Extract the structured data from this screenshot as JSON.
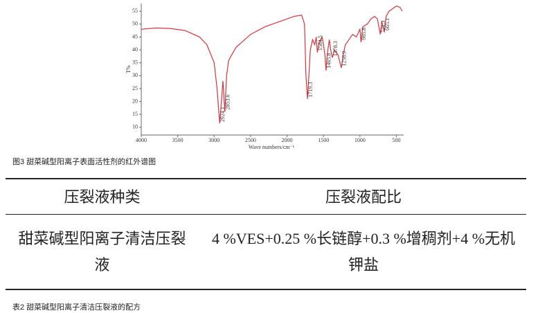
{
  "chart_data": {
    "type": "line",
    "x_label": "Wave numbers/cm⁻¹",
    "y_label": "T%",
    "x": [
      4000,
      3800,
      3600,
      3400,
      3200,
      3100,
      3000,
      2960,
      2924,
      2900,
      2880,
      2853,
      2830,
      2800,
      2700,
      2500,
      2300,
      2100,
      1900,
      1800,
      1760,
      1740,
      1719,
      1700,
      1680,
      1650,
      1620,
      1600,
      1584,
      1560,
      1520,
      1500,
      1480,
      1465,
      1450,
      1420,
      1400,
      1378,
      1350,
      1300,
      1256,
      1230,
      1200,
      1150,
      1100,
      1050,
      1000,
      985,
      960,
      900,
      850,
      800,
      760,
      721,
      700,
      665,
      640,
      600,
      550,
      500,
      450,
      420
    ],
    "values": [
      48,
      48.5,
      48.3,
      47.5,
      45,
      42,
      35,
      25,
      11.5,
      20,
      28,
      16,
      30,
      36,
      41,
      46,
      49,
      51,
      53,
      53.5,
      50,
      30,
      21,
      30,
      40,
      44,
      42,
      45,
      39,
      43,
      45,
      42,
      38,
      32,
      38,
      44,
      40,
      37,
      40,
      38,
      33,
      38,
      42,
      44,
      46,
      45,
      48,
      43,
      49,
      50,
      52,
      53,
      52,
      46,
      51,
      47,
      53,
      55,
      56,
      57,
      56.5,
      55
    ],
    "color": "#d8333d",
    "peaks": [
      2924.1,
      2853.6,
      1719.3,
      1584.5,
      1465.8,
      1378.3,
      1256.9,
      985.8,
      721.3,
      665.1
    ],
    "xlim": [
      4000,
      400
    ],
    "ylim": [
      7,
      58
    ],
    "xticks": [
      4000,
      3500,
      3000,
      2500,
      2000,
      1500,
      1000,
      500
    ],
    "yticks": [
      10,
      15,
      20,
      25,
      30,
      35,
      40,
      45,
      50,
      55
    ]
  },
  "figure_caption": "图3 甜菜碱型阳离子表面活性剂的红外谱图",
  "table": {
    "header": [
      "压裂液种类",
      "压裂液配比"
    ],
    "rows": [
      [
        "甜菜碱型阳离子清洁压裂液",
        "4 %VES+0.25 %长链醇+0.3 %增稠剂+4 %无机钾盐"
      ]
    ]
  },
  "table_caption": "表2 甜菜碱型阳离子清洁压裂液的配方"
}
